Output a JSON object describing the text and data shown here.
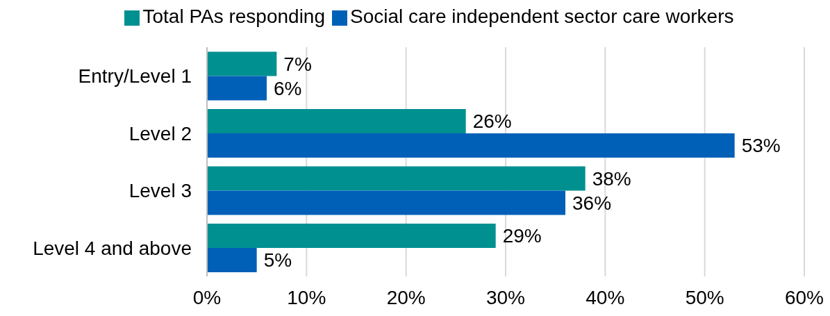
{
  "chart_data": {
    "type": "bar",
    "orientation": "horizontal",
    "categories": [
      "Entry/Level 1",
      "Level 2",
      "Level 3",
      "Level 4 and above"
    ],
    "series": [
      {
        "name": "Total PAs responding",
        "color": "#009090",
        "values": [
          7,
          26,
          38,
          29
        ],
        "value_labels": [
          "7%",
          "26%",
          "38%",
          "29%"
        ]
      },
      {
        "name": "Social care independent sector care workers",
        "color": "#0060b8",
        "values": [
          6,
          53,
          36,
          5
        ],
        "value_labels": [
          "6%",
          "53%",
          "36%",
          "5%"
        ]
      }
    ],
    "xlim": [
      0,
      60
    ],
    "xticks": [
      {
        "value": 0,
        "label": "0%"
      },
      {
        "value": 10,
        "label": "10%"
      },
      {
        "value": 20,
        "label": "20%"
      },
      {
        "value": 30,
        "label": "30%"
      },
      {
        "value": 40,
        "label": "40%"
      },
      {
        "value": 50,
        "label": "50%"
      },
      {
        "value": 60,
        "label": "60%"
      }
    ],
    "grid": "x",
    "legend": "top"
  }
}
